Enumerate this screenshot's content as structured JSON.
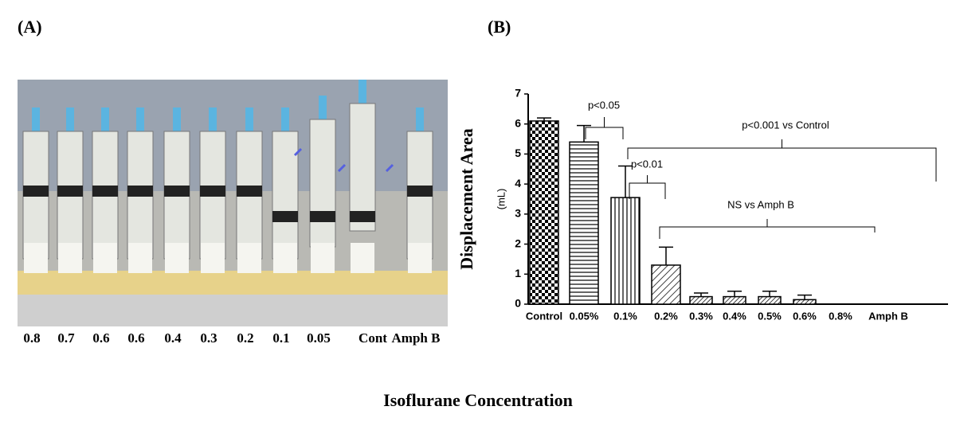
{
  "panel_a": {
    "label": "(A)",
    "labels": [
      "0.8",
      "0.7",
      "0.6",
      "0.6",
      "0.4",
      "0.3",
      "0.2",
      "0.1",
      "0.05",
      "Cont",
      "Amph B"
    ]
  },
  "chart_data": {
    "type": "bar",
    "panel_label": "(B)",
    "ylabel": "Displacement Area",
    "yunit": "(mL)",
    "xlabel": "Isoflurane Concentration",
    "categories": [
      "Control",
      "0.05%",
      "0.1%",
      "0.2%",
      "0.3%",
      "0.4%",
      "0.5%",
      "0.6%",
      "0.8%",
      "Amph B"
    ],
    "values": [
      6.1,
      5.4,
      3.55,
      1.3,
      0.25,
      0.25,
      0.25,
      0.15,
      0,
      0
    ],
    "errors": [
      0.1,
      0.55,
      1.05,
      0.6,
      0.12,
      0.18,
      0.18,
      0.15,
      0,
      0
    ],
    "ylim": [
      0,
      7
    ],
    "yticks": [
      0,
      1,
      2,
      3,
      4,
      5,
      6,
      7
    ],
    "color": "#000000",
    "annotations": [
      "p<0.05",
      "p<0.001 vs Control",
      "p<0.01",
      "NS vs Amph B"
    ]
  }
}
